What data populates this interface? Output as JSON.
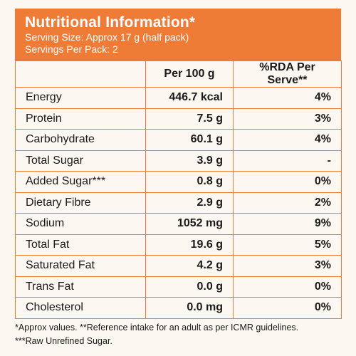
{
  "header": {
    "title": "Nutritional Information*",
    "serving_size": "Serving Size: Approx 17 g (half pack)",
    "servings_per_pack": "Servings Per Pack: 2"
  },
  "table": {
    "columns": [
      "",
      "Per 100 g",
      "%RDA Per Serve**"
    ],
    "rows": [
      {
        "name": "Energy",
        "per100": "446.7 kcal",
        "rda": "4%"
      },
      {
        "name": "Protein",
        "per100": "7.5 g",
        "rda": "3%"
      },
      {
        "name": "Carbohydrate",
        "per100": "60.1 g",
        "rda": "4%"
      },
      {
        "name": "Total Sugar",
        "per100": "3.9 g",
        "rda": "-"
      },
      {
        "name": "Added Sugar***",
        "per100": "0.8 g",
        "rda": "0%"
      },
      {
        "name": "Dietary Fibre",
        "per100": "2.9 g",
        "rda": "2%"
      },
      {
        "name": "Sodium",
        "per100": "1052 mg",
        "rda": "9%"
      },
      {
        "name": "Total Fat",
        "per100": "19.6 g",
        "rda": "5%"
      },
      {
        "name": "Saturated Fat",
        "per100": "4.2 g",
        "rda": "3%"
      },
      {
        "name": "Trans Fat",
        "per100": "0.0 g",
        "rda": "0%"
      },
      {
        "name": "Cholesterol",
        "per100": "0.0 mg",
        "rda": "0%"
      }
    ]
  },
  "footnotes": {
    "line1": "*Approx values. **Reference intake for an adult as per ICMR guidelines.",
    "line2": "***Raw Unrefined Sugar."
  },
  "colors": {
    "accent": "#ee7b36",
    "background": "#fdf7f1"
  }
}
